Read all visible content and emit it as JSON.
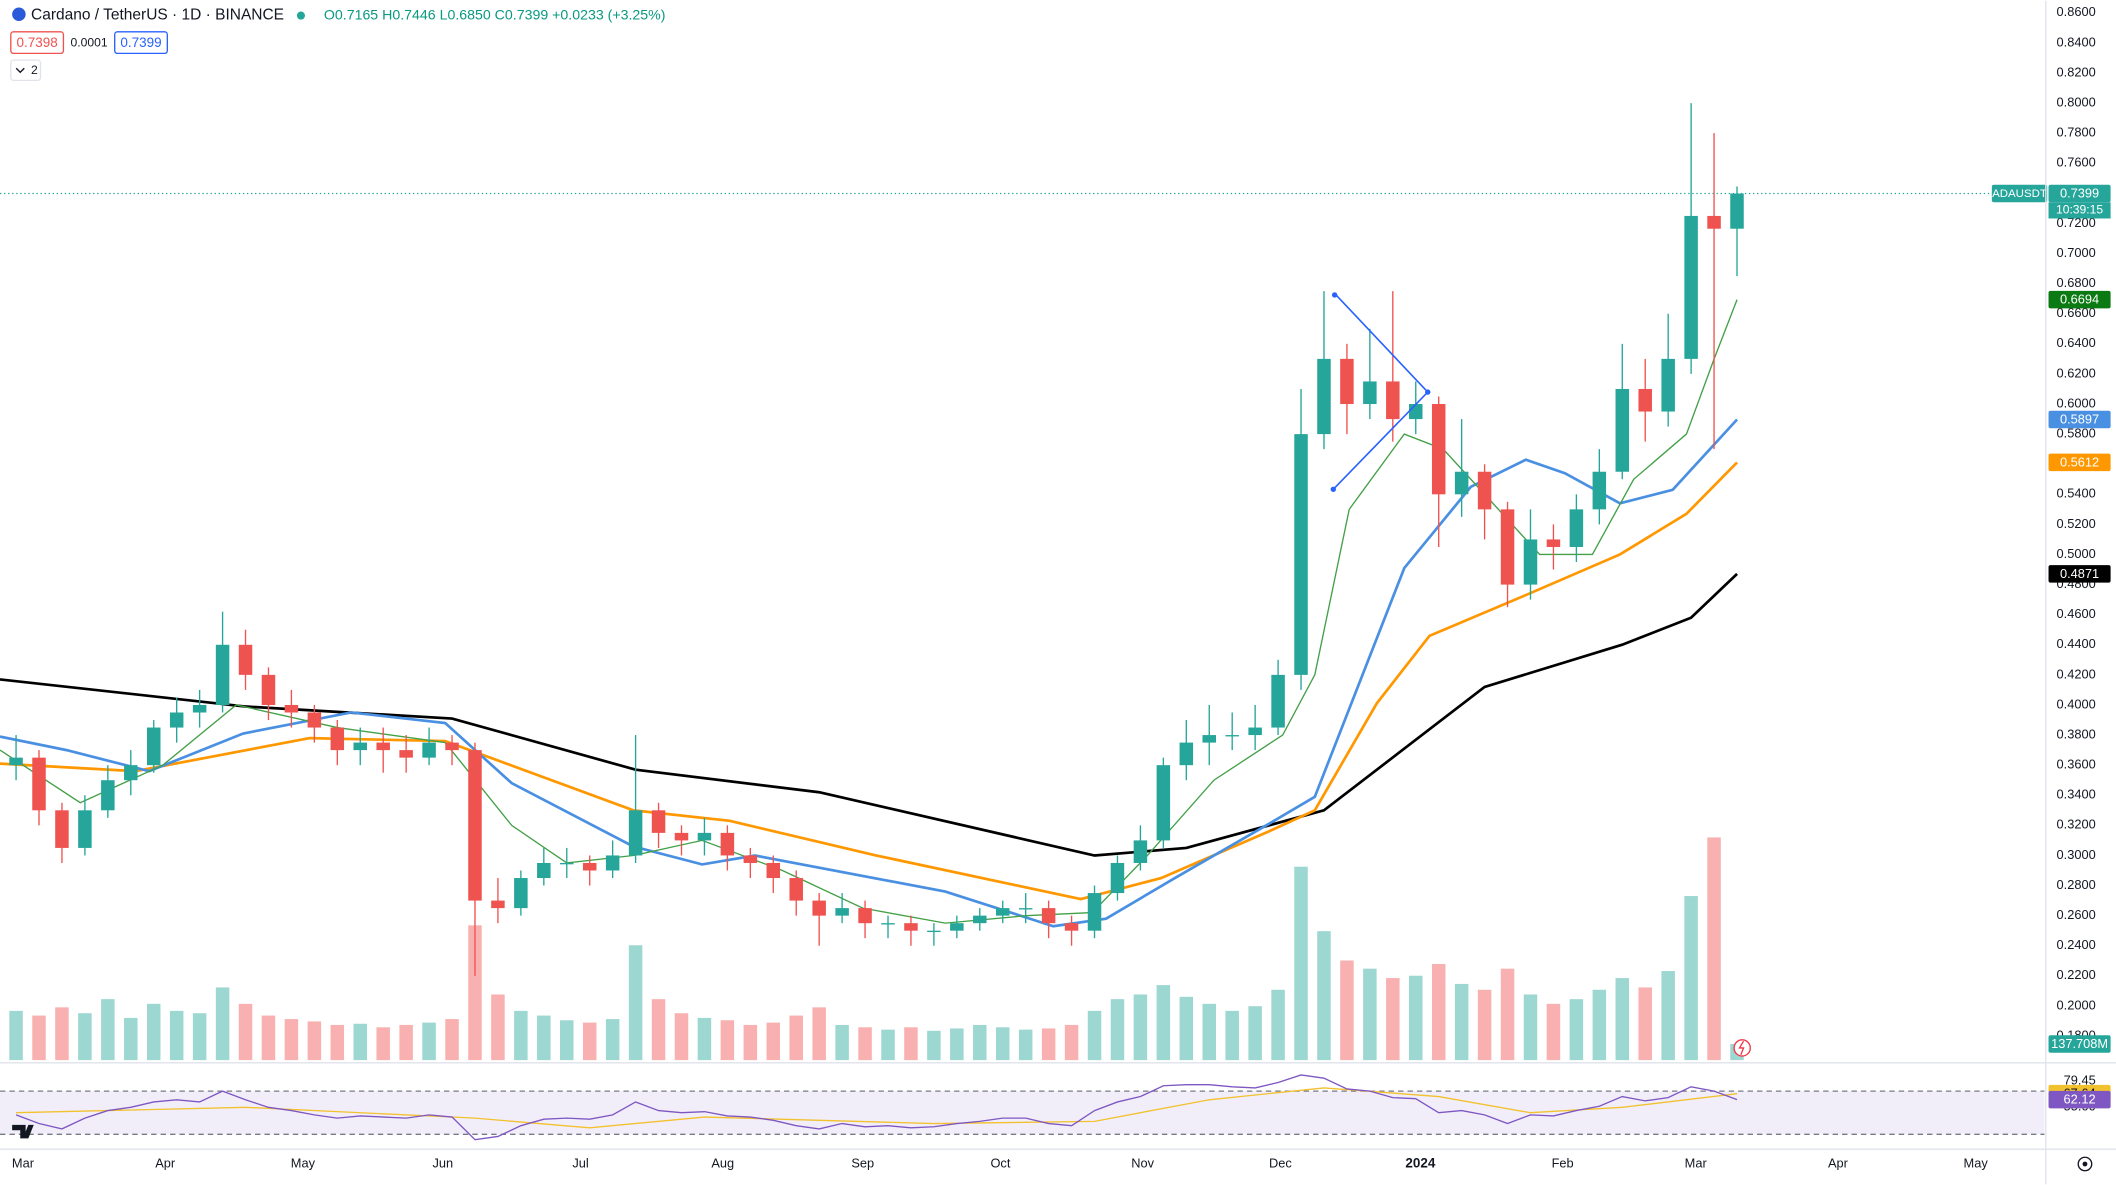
{
  "chart_data": {
    "type": "candlestick",
    "header": {
      "symbol": "Cardano / TetherUS · 1D · BINANCE",
      "ohlc": "O0.7165 H0.7446 L0.6850 C0.7399 +0.0233 (+3.25%)",
      "bid": "0.7398",
      "spread": "0.0001",
      "ask": "0.7399",
      "collapsed": "2"
    },
    "ticker": "ADAUSDT",
    "countdown": "10:39:15",
    "up_color": "#26a69a",
    "down_color": "#ef5350",
    "open": [
      0.36,
      0.365,
      0.33,
      0.305,
      0.33,
      0.35,
      0.36,
      0.385,
      0.395,
      0.4,
      0.44,
      0.42,
      0.4,
      0.395,
      0.385,
      0.37,
      0.375,
      0.37,
      0.365,
      0.375,
      0.37,
      0.27,
      0.265,
      0.285,
      0.295,
      0.295,
      0.29,
      0.3,
      0.33,
      0.315,
      0.31,
      0.315,
      0.3,
      0.295,
      0.285,
      0.27,
      0.26,
      0.265,
      0.255,
      0.255,
      0.25,
      0.25,
      0.255,
      0.26,
      0.265,
      0.265,
      0.255,
      0.25,
      0.275,
      0.295,
      0.31,
      0.36,
      0.375,
      0.38,
      0.38,
      0.385,
      0.42,
      0.58,
      0.63,
      0.6,
      0.615,
      0.59,
      0.6,
      0.54,
      0.555,
      0.53,
      0.48,
      0.51,
      0.505,
      0.53,
      0.555,
      0.61,
      0.595,
      0.63,
      0.725,
      0.7165
    ],
    "high": [
      0.38,
      0.37,
      0.335,
      0.34,
      0.36,
      0.37,
      0.39,
      0.405,
      0.41,
      0.462,
      0.45,
      0.425,
      0.41,
      0.4,
      0.39,
      0.385,
      0.385,
      0.38,
      0.385,
      0.38,
      0.375,
      0.285,
      0.29,
      0.305,
      0.305,
      0.3,
      0.31,
      0.38,
      0.335,
      0.32,
      0.325,
      0.32,
      0.305,
      0.3,
      0.29,
      0.275,
      0.275,
      0.27,
      0.26,
      0.26,
      0.255,
      0.26,
      0.265,
      0.27,
      0.275,
      0.27,
      0.26,
      0.28,
      0.3,
      0.32,
      0.365,
      0.39,
      0.4,
      0.395,
      0.4,
      0.43,
      0.61,
      0.675,
      0.64,
      0.65,
      0.675,
      0.615,
      0.605,
      0.59,
      0.56,
      0.535,
      0.53,
      0.52,
      0.54,
      0.57,
      0.64,
      0.63,
      0.66,
      0.8,
      0.78,
      0.7446
    ],
    "low": [
      0.35,
      0.32,
      0.295,
      0.3,
      0.325,
      0.34,
      0.355,
      0.375,
      0.385,
      0.395,
      0.41,
      0.39,
      0.385,
      0.375,
      0.36,
      0.36,
      0.355,
      0.355,
      0.36,
      0.36,
      0.22,
      0.255,
      0.26,
      0.28,
      0.285,
      0.28,
      0.285,
      0.295,
      0.305,
      0.3,
      0.3,
      0.29,
      0.285,
      0.275,
      0.26,
      0.24,
      0.255,
      0.245,
      0.245,
      0.24,
      0.24,
      0.245,
      0.25,
      0.255,
      0.255,
      0.245,
      0.24,
      0.245,
      0.27,
      0.29,
      0.305,
      0.35,
      0.36,
      0.37,
      0.37,
      0.38,
      0.41,
      0.57,
      0.58,
      0.59,
      0.575,
      0.58,
      0.505,
      0.525,
      0.51,
      0.465,
      0.47,
      0.49,
      0.495,
      0.52,
      0.55,
      0.575,
      0.585,
      0.62,
      0.57,
      0.685
    ],
    "close": [
      0.365,
      0.33,
      0.305,
      0.33,
      0.35,
      0.36,
      0.385,
      0.395,
      0.4,
      0.44,
      0.42,
      0.4,
      0.395,
      0.385,
      0.37,
      0.375,
      0.37,
      0.365,
      0.375,
      0.37,
      0.27,
      0.265,
      0.285,
      0.295,
      0.295,
      0.29,
      0.3,
      0.33,
      0.315,
      0.31,
      0.315,
      0.3,
      0.295,
      0.285,
      0.27,
      0.26,
      0.265,
      0.255,
      0.255,
      0.25,
      0.25,
      0.255,
      0.26,
      0.265,
      0.265,
      0.255,
      0.25,
      0.275,
      0.295,
      0.31,
      0.36,
      0.375,
      0.38,
      0.38,
      0.385,
      0.42,
      0.58,
      0.63,
      0.6,
      0.615,
      0.59,
      0.6,
      0.54,
      0.555,
      0.53,
      0.48,
      0.51,
      0.505,
      0.53,
      0.555,
      0.61,
      0.595,
      0.63,
      0.725,
      0.7165,
      0.7399
    ],
    "volume": {
      "values": [
        420,
        380,
        450,
        400,
        520,
        360,
        480,
        420,
        400,
        620,
        480,
        380,
        350,
        330,
        300,
        310,
        280,
        300,
        320,
        350,
        1150,
        560,
        420,
        380,
        340,
        320,
        350,
        980,
        520,
        400,
        360,
        340,
        300,
        320,
        380,
        450,
        300,
        280,
        260,
        280,
        250,
        270,
        300,
        280,
        260,
        270,
        300,
        420,
        520,
        560,
        640,
        540,
        480,
        420,
        460,
        600,
        1650,
        1100,
        850,
        780,
        700,
        720,
        820,
        650,
        600,
        780,
        560,
        480,
        520,
        600,
        700,
        620,
        760,
        1400,
        1900,
        137.708
      ],
      "last_label": "137.708M"
    },
    "series": [
      {
        "color": "#000000",
        "x": [
          -0.7,
          10,
          19,
          27,
          35,
          47,
          51,
          57,
          64,
          70,
          73,
          75
        ],
        "values": [
          0.417,
          0.399,
          0.391,
          0.357,
          0.342,
          0.3,
          0.305,
          0.33,
          0.412,
          0.44,
          0.458,
          0.4871
        ]
      },
      {
        "color": "#ff9800",
        "x": [
          -0.7,
          5.2,
          12.8,
          18.7,
          26.9,
          31.1,
          37.5,
          46.4,
          49.9,
          54.6,
          56.6,
          59.3,
          61.6,
          65.8,
          69.9,
          72.8,
          75
        ],
        "values": [
          0.361,
          0.356,
          0.378,
          0.376,
          0.33,
          0.323,
          0.3,
          0.271,
          0.285,
          0.316,
          0.33,
          0.401,
          0.446,
          0.473,
          0.5,
          0.527,
          0.5612
        ]
      },
      {
        "color": "#4a90e2",
        "x": [
          -0.7,
          2.2,
          5.8,
          9.9,
          14.6,
          18.7,
          21.6,
          26.9,
          29.9,
          32.2,
          40.5,
          45.2,
          47.5,
          50.5,
          54.6,
          56.6,
          60.5,
          63.4,
          65.8,
          67.5,
          69.9,
          72.2,
          75
        ],
        "values": [
          0.379,
          0.37,
          0.356,
          0.381,
          0.395,
          0.388,
          0.348,
          0.306,
          0.294,
          0.3,
          0.276,
          0.253,
          0.258,
          0.285,
          0.321,
          0.339,
          0.491,
          0.545,
          0.563,
          0.554,
          0.534,
          0.543,
          0.5897
        ]
      },
      {
        "color": "#43a047",
        "x": [
          -0.7,
          2.8,
          6.4,
          9.6,
          14,
          18.7,
          21.6,
          24,
          26.9,
          29.9,
          33.4,
          36.9,
          40.5,
          44,
          46.9,
          49.3,
          52.2,
          55.2,
          56.6,
          58.1,
          60.5,
          62.2,
          64,
          66.4,
          68.7,
          70.5,
          72.8,
          74,
          75
        ],
        "values": [
          0.37,
          0.335,
          0.36,
          0.4,
          0.385,
          0.375,
          0.32,
          0.295,
          0.3,
          0.31,
          0.29,
          0.265,
          0.255,
          0.26,
          0.262,
          0.3,
          0.35,
          0.38,
          0.42,
          0.53,
          0.58,
          0.57,
          0.54,
          0.5,
          0.5,
          0.55,
          0.58,
          0.63,
          0.6694
        ]
      }
    ],
    "xlim": [
      -0.7,
      88.4
    ],
    "xticks": [
      {
        "value": 0.3,
        "label": "Mar"
      },
      {
        "value": 6.5,
        "label": "Apr"
      },
      {
        "value": 12.5,
        "label": "May"
      },
      {
        "value": 18.6,
        "label": "Jun"
      },
      {
        "value": 24.6,
        "label": "Jul"
      },
      {
        "value": 30.8,
        "label": "Aug"
      },
      {
        "value": 36.9,
        "label": "Sep"
      },
      {
        "value": 42.9,
        "label": "Oct"
      },
      {
        "value": 49.1,
        "label": "Nov"
      },
      {
        "value": 55.1,
        "label": "Dec"
      },
      2024,
      {
        "value": 67.4,
        "label": "Feb"
      },
      {
        "value": 73.2,
        "label": "Mar"
      },
      {
        "value": 79.4,
        "label": "Apr"
      },
      {
        "value": 85.4,
        "label": "May"
      }
    ],
    "xtick_2024_position": 61.2,
    "ylim": [
      0.164,
      0.868
    ],
    "yticks": [
      {
        "value": 0.18,
        "label": "0.1800"
      },
      {
        "value": 0.2,
        "label": "0.2000"
      },
      {
        "value": 0.22,
        "label": "0.2200"
      },
      {
        "value": 0.24,
        "label": "0.2400"
      },
      {
        "value": 0.26,
        "label": "0.2600"
      },
      {
        "value": 0.28,
        "label": "0.2800"
      },
      {
        "value": 0.3,
        "label": "0.3000"
      },
      {
        "value": 0.32,
        "label": "0.3200"
      },
      {
        "value": 0.34,
        "label": "0.3400"
      },
      {
        "value": 0.36,
        "label": "0.3600"
      },
      {
        "value": 0.38,
        "label": "0.3800"
      },
      {
        "value": 0.4,
        "label": "0.4000"
      },
      {
        "value": 0.42,
        "label": "0.4200"
      },
      {
        "value": 0.44,
        "label": "0.4400"
      },
      {
        "value": 0.46,
        "label": "0.4600"
      },
      {
        "value": 0.48,
        "label": "0.4800"
      },
      {
        "value": 0.5,
        "label": "0.5000"
      },
      {
        "value": 0.52,
        "label": "0.5200"
      },
      {
        "value": 0.54,
        "label": "0.5400"
      },
      {
        "value": 0.56,
        "label": "0.5600"
      },
      {
        "value": 0.58,
        "label": "0.5800"
      },
      {
        "value": 0.6,
        "label": "0.6000"
      },
      {
        "value": 0.62,
        "label": "0.6200"
      },
      {
        "value": 0.64,
        "label": "0.6400"
      },
      {
        "value": 0.66,
        "label": "0.6600"
      },
      {
        "value": 0.68,
        "label": "0.6800"
      },
      {
        "value": 0.7,
        "label": "0.7000"
      },
      {
        "value": 0.72,
        "label": "0.7200"
      },
      {
        "value": 0.74,
        "label": "0.7400"
      },
      {
        "value": 0.76,
        "label": "0.7600"
      },
      {
        "value": 0.78,
        "label": "0.7800"
      },
      {
        "value": 0.8,
        "label": "0.8000"
      },
      {
        "value": 0.82,
        "label": "0.8200"
      },
      {
        "value": 0.84,
        "label": "0.8400"
      },
      {
        "value": 0.86,
        "label": "0.8600"
      }
    ],
    "grid": false,
    "rsi": {
      "color": "#7e57c2",
      "values": [
        48,
        40,
        35,
        45,
        52,
        55,
        60,
        62,
        60,
        70,
        62,
        55,
        52,
        48,
        45,
        47,
        46,
        45,
        48,
        46,
        25,
        28,
        38,
        44,
        45,
        44,
        48,
        60,
        52,
        50,
        51,
        47,
        46,
        43,
        38,
        35,
        40,
        37,
        38,
        36,
        37,
        40,
        42,
        45,
        45,
        40,
        38,
        52,
        60,
        65,
        75,
        76,
        76,
        74,
        73,
        78,
        85,
        82,
        72,
        70,
        64,
        63,
        50,
        52,
        48,
        40,
        48,
        47,
        52,
        56,
        65,
        61,
        64,
        74,
        70,
        62.12
      ],
      "ma": {
        "color": "#f2c12e",
        "x": [
          0,
          10,
          20,
          25,
          30,
          40,
          47,
          52,
          57,
          62,
          66,
          70,
          75
        ],
        "values": [
          50,
          55,
          45,
          36,
          46,
          40,
          42,
          62,
          73,
          65,
          50,
          55,
          67.64
        ]
      },
      "ylim": [
        20,
        92.5
      ],
      "yticks": [
        79.45,
        {
          "value": 55,
          "label": "55.00"
        }
      ],
      "bands": [
        70,
        30
      ]
    }
  }
}
